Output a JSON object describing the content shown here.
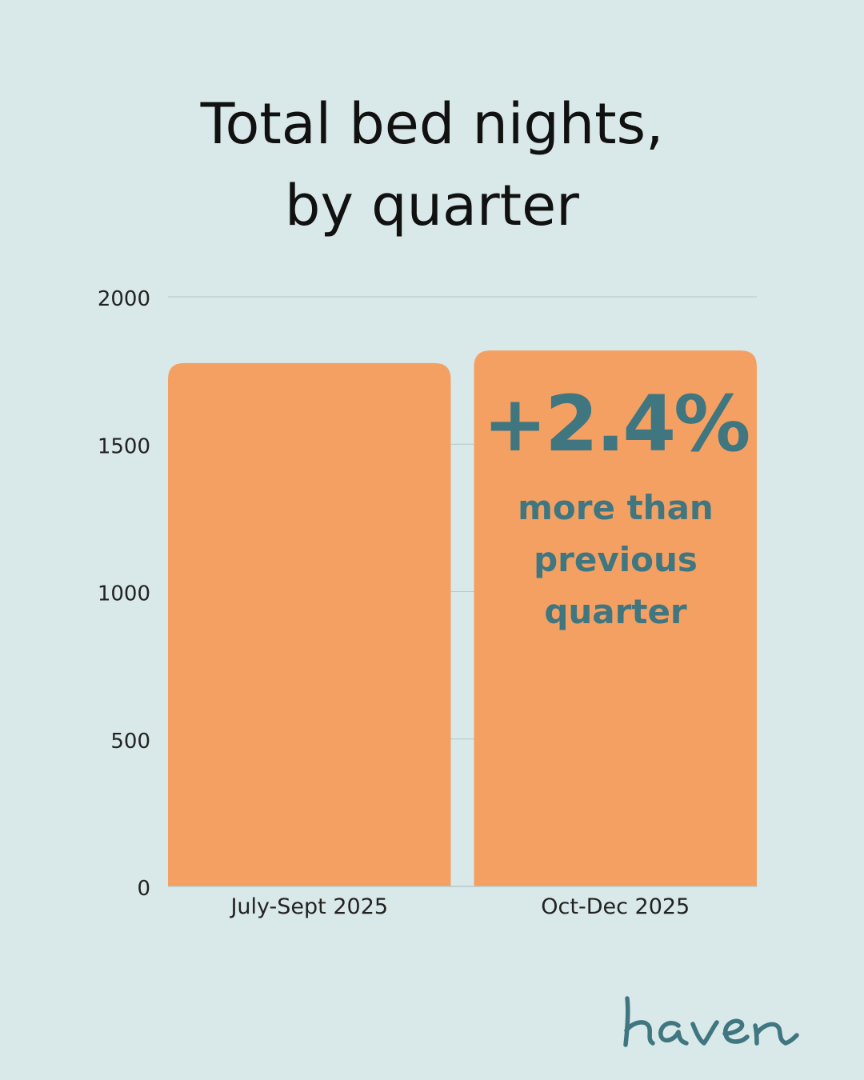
{
  "title": {
    "line1": "Total bed nights,",
    "line2": "by quarter"
  },
  "callout": {
    "value": "+2.4%",
    "text": "more than previous quarter"
  },
  "brand": {
    "logo_text": "haven",
    "logo_color": "#3f7680"
  },
  "colors": {
    "background": "#d9e8e8",
    "bar": "#f3a062",
    "gridline": "#b6c9cb",
    "callout": "#3f7680"
  },
  "chart_data": {
    "type": "bar",
    "categories": [
      "July-Sept 2025",
      "Oct-Dec 2025"
    ],
    "values": [
      1775,
      1818
    ],
    "ylim": [
      0,
      2000
    ],
    "yticks": [
      0,
      500,
      1000,
      1500,
      2000
    ],
    "xlabel": "",
    "ylabel": "",
    "grid": true,
    "legend": "none"
  }
}
